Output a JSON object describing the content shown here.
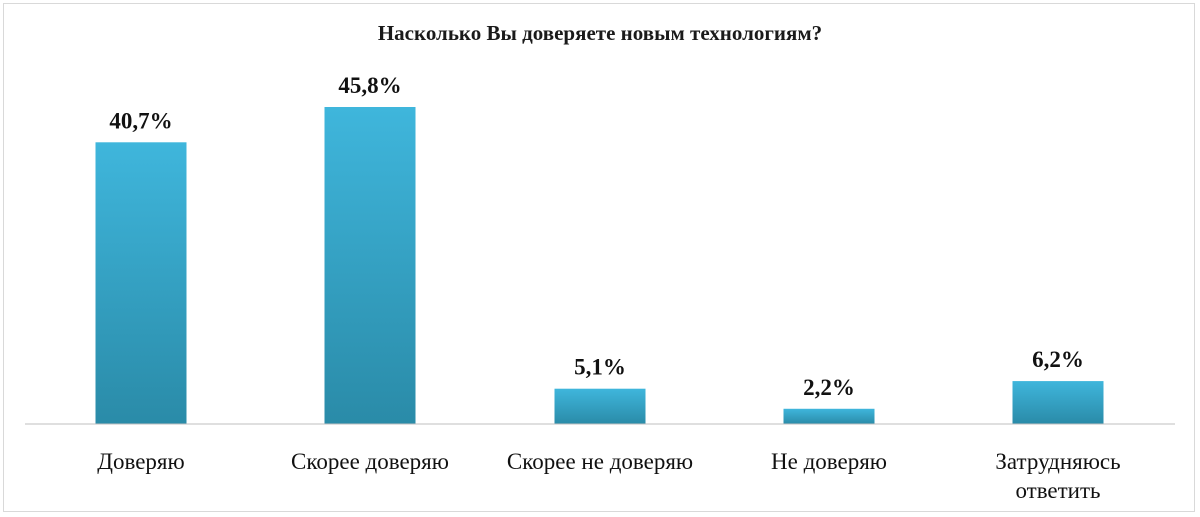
{
  "chart_data": {
    "type": "bar",
    "title": "Насколько Вы доверяете новым технологиям?",
    "categories": [
      [
        "Доверяю"
      ],
      [
        "Скорее доверяю"
      ],
      [
        "Скорее не доверяю"
      ],
      [
        "Не доверяю"
      ],
      [
        "Затрудняюсь",
        "ответить"
      ]
    ],
    "values": [
      40.7,
      45.8,
      5.1,
      2.2,
      6.2
    ],
    "value_labels": [
      "40,7%",
      "45,8%",
      "5,1%",
      "2,2%",
      "6,2%"
    ],
    "ylim": [
      0,
      50
    ],
    "grid": false,
    "legend": "none",
    "colors": {
      "bar_top": "#3fb6dc",
      "bar_bottom": "#2a8ba8",
      "axis": "#bfbfbf"
    }
  }
}
